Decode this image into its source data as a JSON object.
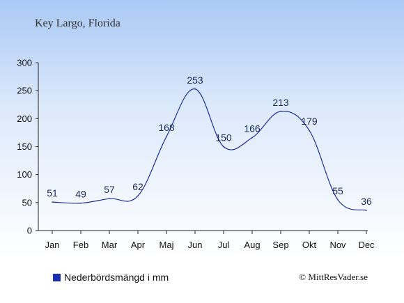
{
  "chart_data": {
    "type": "line",
    "title": "Key Largo, Florida",
    "categories": [
      "Jan",
      "Feb",
      "Mar",
      "Apr",
      "Maj",
      "Jun",
      "Jul",
      "Aug",
      "Sep",
      "Okt",
      "Nov",
      "Dec"
    ],
    "series": [
      {
        "name": "Nederbördsmängd i mm",
        "values": [
          51,
          49,
          57,
          62,
          168,
          253,
          150,
          166,
          213,
          179,
          55,
          36
        ],
        "color": "#1c2e9c"
      }
    ],
    "ylim": [
      0,
      300
    ],
    "yticks": [
      0,
      50,
      100,
      150,
      200,
      250,
      300
    ],
    "grid": false,
    "legend_position": "bottom-left",
    "legend_marker_color": "#1a2fb0"
  },
  "credit": "© MittResVader.se"
}
